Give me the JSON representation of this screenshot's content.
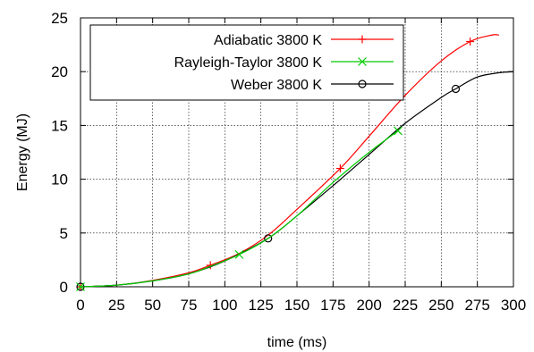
{
  "chart_data": {
    "type": "line",
    "xlabel": "time (ms)",
    "ylabel": "Energy (MJ)",
    "xlim": [
      0,
      300
    ],
    "ylim": [
      0,
      25
    ],
    "x_ticks": [
      0,
      25,
      50,
      75,
      100,
      125,
      150,
      175,
      200,
      225,
      250,
      275,
      300
    ],
    "y_ticks": [
      0,
      5,
      10,
      15,
      20,
      25
    ],
    "grid": true,
    "legend_position": "top-left",
    "series": [
      {
        "name": "Adiabatic 3800 K",
        "color": "#ff0000",
        "marker": "plus",
        "x": [
          0,
          25,
          50,
          75,
          90,
          110,
          130,
          150,
          180,
          200,
          225,
          250,
          270,
          285,
          290
        ],
        "y": [
          0,
          0.15,
          0.6,
          1.3,
          2.0,
          3.1,
          4.8,
          7.2,
          11.0,
          14.0,
          17.8,
          21.0,
          22.8,
          23.4,
          23.4
        ],
        "markers_x": [
          0,
          90,
          180,
          270
        ],
        "markers_y": [
          0,
          2.0,
          11.0,
          22.8
        ]
      },
      {
        "name": "Rayleigh-Taylor 3800 K",
        "color": "#00cc00",
        "marker": "cross",
        "x": [
          0,
          25,
          50,
          75,
          90,
          110,
          130,
          150,
          175,
          200,
          220
        ],
        "y": [
          0,
          0.15,
          0.55,
          1.2,
          1.9,
          3.0,
          4.5,
          6.6,
          9.7,
          12.5,
          14.5
        ],
        "markers_x": [
          0,
          110,
          220
        ],
        "markers_y": [
          0,
          3.0,
          14.5
        ]
      },
      {
        "name": "Weber 3800 K",
        "color": "#000000",
        "marker": "circle",
        "x": [
          0,
          25,
          50,
          75,
          100,
          130,
          150,
          175,
          200,
          225,
          250,
          260,
          275,
          290,
          300
        ],
        "y": [
          0,
          0.15,
          0.55,
          1.2,
          2.4,
          4.5,
          6.6,
          9.4,
          12.3,
          15.2,
          17.6,
          18.4,
          19.5,
          19.9,
          20.0
        ],
        "markers_x": [
          0,
          130,
          260
        ],
        "markers_y": [
          0,
          4.5,
          18.4
        ]
      }
    ]
  }
}
